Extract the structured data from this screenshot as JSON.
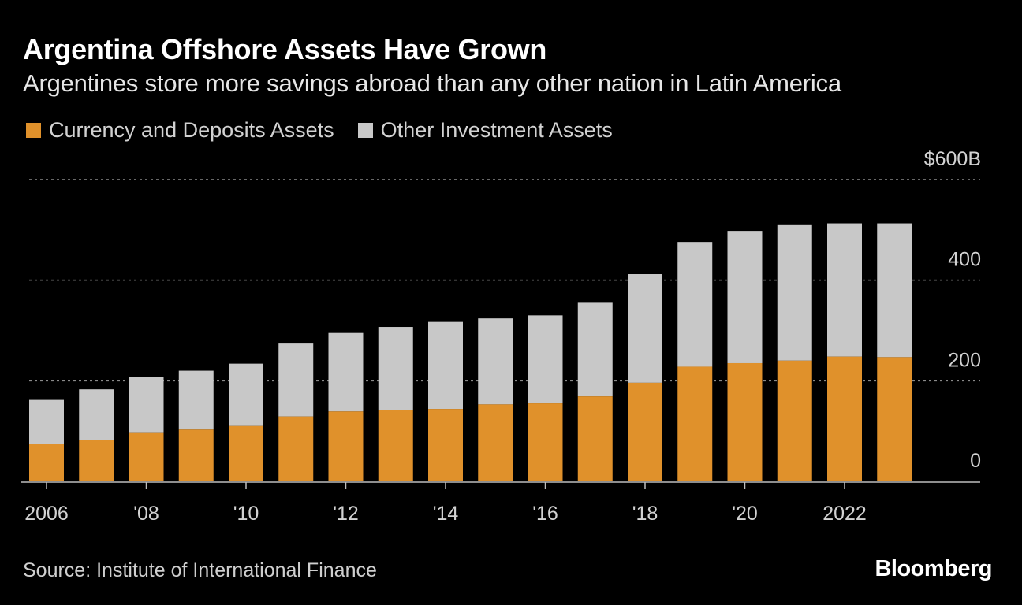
{
  "title": "Argentina Offshore Assets Have Grown",
  "subtitle": "Argentines store more savings abroad than any other nation in Latin America",
  "legend": [
    {
      "label": "Currency and Deposits Assets",
      "color": "#e0912b"
    },
    {
      "label": "Other Investment Assets",
      "color": "#c8c8c8"
    }
  ],
  "source": "Source: Institute of International Finance",
  "brand": "Bloomberg",
  "chart_data": {
    "type": "bar",
    "stacked": true,
    "title": "Argentina Offshore Assets Have Grown",
    "subtitle": "Argentines store more savings abroad than any other nation in Latin America",
    "xlabel": "",
    "ylabel": "",
    "ylim": [
      0,
      600
    ],
    "yticks": [
      0,
      200,
      400,
      600
    ],
    "ytick_labels": [
      "0",
      "200",
      "400",
      "$600B"
    ],
    "grid": true,
    "legend_position": "top-left",
    "categories": [
      "2006",
      "2007",
      "2008",
      "2009",
      "2010",
      "2011",
      "2012",
      "2013",
      "2014",
      "2015",
      "2016",
      "2017",
      "2018",
      "2019",
      "2020",
      "2021",
      "2022",
      "2023"
    ],
    "xtick_labels": [
      {
        "index": 0,
        "label": "2006"
      },
      {
        "index": 2,
        "label": "'08"
      },
      {
        "index": 4,
        "label": "'10"
      },
      {
        "index": 6,
        "label": "'12"
      },
      {
        "index": 8,
        "label": "'14"
      },
      {
        "index": 10,
        "label": "'16"
      },
      {
        "index": 12,
        "label": "'18"
      },
      {
        "index": 14,
        "label": "'20"
      },
      {
        "index": 16,
        "label": "2022"
      }
    ],
    "series": [
      {
        "name": "Currency and Deposits Assets",
        "color": "#e0912b",
        "values": [
          74,
          83,
          96,
          103,
          110,
          129,
          139,
          141,
          144,
          153,
          155,
          169,
          196,
          228,
          235,
          240,
          248,
          247
        ]
      },
      {
        "name": "Other Investment Assets",
        "color": "#c8c8c8",
        "values": [
          88,
          100,
          112,
          117,
          124,
          145,
          156,
          166,
          173,
          171,
          175,
          186,
          216,
          248,
          263,
          271,
          265,
          266
        ]
      }
    ]
  }
}
